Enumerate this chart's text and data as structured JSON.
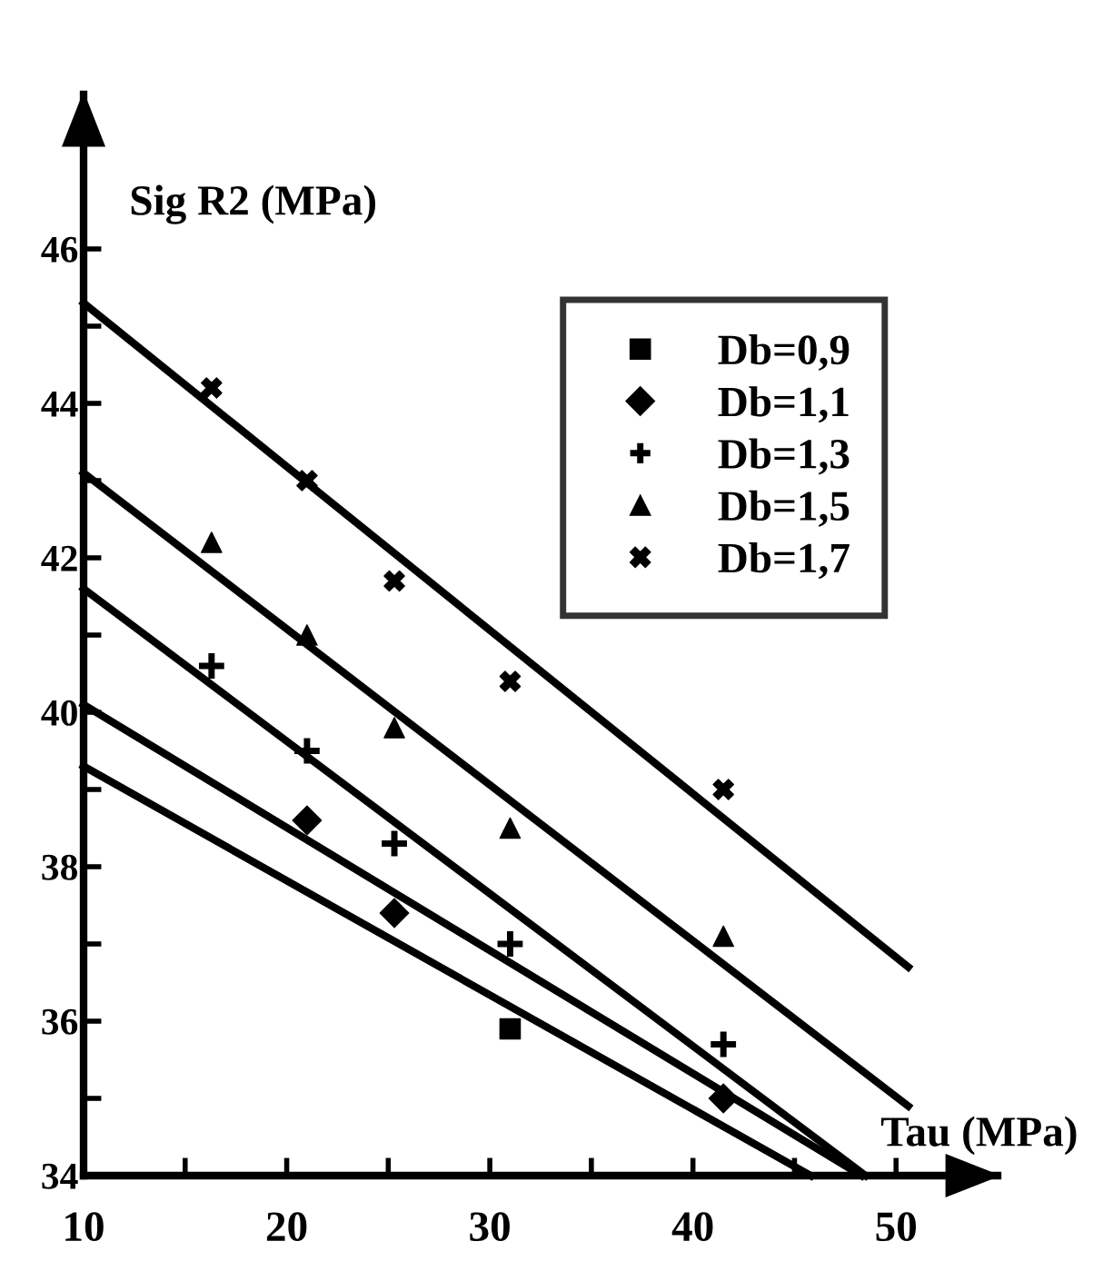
{
  "chart_data": {
    "type": "scatter",
    "xlabel": "Tau (MPa)",
    "ylabel": "Sig R2 (MPa)",
    "xlim": [
      10,
      55
    ],
    "ylim": [
      34,
      48
    ],
    "xticks": [
      10,
      {
        "value": 15,
        "label": null
      },
      20,
      {
        "value": 25,
        "label": null
      },
      30,
      {
        "value": 35,
        "label": null
      },
      40,
      {
        "value": 45,
        "label": null
      },
      50
    ],
    "yticks": [
      34,
      {
        "value": 35,
        "label": null
      },
      36,
      {
        "value": 37,
        "label": null
      },
      38,
      {
        "value": 39,
        "label": null
      },
      40,
      {
        "value": 41,
        "label": null
      },
      42,
      {
        "value": 43,
        "label": null
      },
      44,
      {
        "value": 45,
        "label": null
      },
      46
    ],
    "grid": false,
    "legend": "top right",
    "series": [
      {
        "name": "Db=0,9",
        "color": "#000000",
        "marker": "square",
        "x": [
          31
        ],
        "values": [
          35.9
        ]
      },
      {
        "name": "Db=1,1",
        "color": "#000000",
        "marker": "diamond",
        "x": [
          21,
          25.3,
          41.5
        ],
        "values": [
          38.6,
          37.4,
          35.0
        ]
      },
      {
        "name": "Db=1,3",
        "color": "#000000",
        "marker": "cross",
        "x": [
          16.3,
          21,
          25.3,
          31,
          41.5
        ],
        "values": [
          40.6,
          39.5,
          38.3,
          37.0,
          35.7
        ]
      },
      {
        "name": "Db=1,5",
        "color": "#000000",
        "marker": "triangle",
        "x": [
          16.3,
          21,
          25.3,
          31,
          41.5
        ],
        "values": [
          42.2,
          41.0,
          39.8,
          38.5,
          37.1
        ]
      },
      {
        "name": "Db=1,7",
        "color": "#000000",
        "marker": "cross",
        "x": [
          16.3,
          21,
          25.3,
          31,
          41.5
        ],
        "values": [
          44.2,
          43.0,
          41.7,
          40.4,
          39.0
        ]
      },
      {
        "type": "line",
        "color": "#000000",
        "line_style": "solid",
        "x": [
          10,
          45.8
        ],
        "values": [
          39.3,
          34.0
        ]
      },
      {
        "type": "line",
        "color": "#000000",
        "line_style": "solid",
        "x": [
          10,
          48.3
        ],
        "values": [
          40.1,
          34.0
        ]
      },
      {
        "type": "line",
        "color": "#000000",
        "line_style": "solid",
        "x": [
          10,
          48.5
        ],
        "values": [
          41.6,
          34.0
        ]
      },
      {
        "type": "line",
        "color": "#000000",
        "line_style": "solid",
        "x": [
          10,
          50.6
        ],
        "values": [
          43.1,
          34.9
        ]
      },
      {
        "type": "line",
        "color": "#000000",
        "line_style": "solid",
        "x": [
          10,
          50.6
        ],
        "values": [
          45.3,
          36.7
        ]
      }
    ]
  }
}
